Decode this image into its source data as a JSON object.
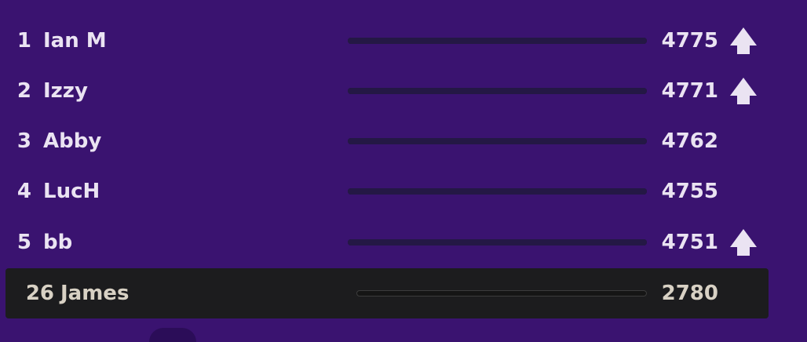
{
  "colors": {
    "background": "#3a1370",
    "text": "#eae3f2",
    "user_text": "#d8d1c4",
    "user_row_bg": "#1c1c1e",
    "bar_track": "#1c1234",
    "arrow": "#eae3f2"
  },
  "leaderboard": {
    "entries": [
      {
        "rank": "1",
        "name": "Ian M",
        "score": "4775",
        "trend_icon": "arrow-up-icon",
        "trend": "up",
        "progress": 1.0
      },
      {
        "rank": "2",
        "name": "Izzy",
        "score": "4771",
        "trend_icon": "arrow-up-icon",
        "trend": "up",
        "progress": 1.0
      },
      {
        "rank": "3",
        "name": "Abby",
        "score": "4762",
        "trend": "none",
        "progress": 1.0
      },
      {
        "rank": "4",
        "name": "LucH",
        "score": "4755",
        "trend": "none",
        "progress": 1.0
      },
      {
        "rank": "5",
        "name": "bb",
        "score": "4751",
        "trend_icon": "arrow-up-icon",
        "trend": "up",
        "progress": 1.0
      }
    ],
    "current_user": {
      "rank": "26",
      "name": "James",
      "score": "2780",
      "progress": 0.0
    }
  }
}
